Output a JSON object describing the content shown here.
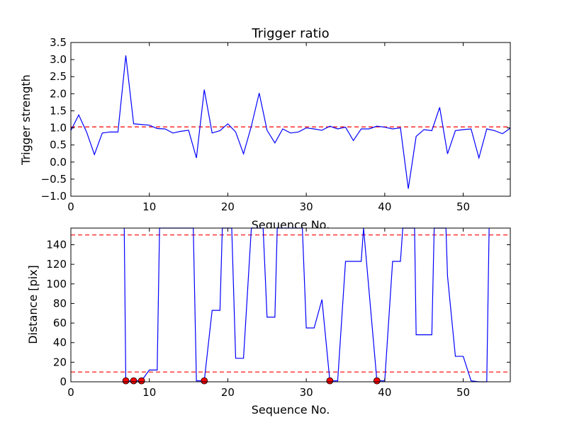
{
  "chart_data": [
    {
      "type": "line",
      "title": "Trigger ratio",
      "xlabel": "Sequence No.",
      "ylabel": "Trigger strength",
      "xlim": [
        0,
        56
      ],
      "ylim": [
        -1.0,
        3.5
      ],
      "xticks": [
        0,
        10,
        20,
        30,
        40,
        50
      ],
      "yticks": [
        -1.0,
        -0.5,
        0.0,
        0.5,
        1.0,
        1.5,
        2.0,
        2.5,
        3.0,
        3.5
      ],
      "xtick_labels": [
        "0",
        "10",
        "20",
        "30",
        "40",
        "50"
      ],
      "ytick_labels": [
        "−1.0",
        "−0.5",
        "0.0",
        "0.5",
        "1.0",
        "1.5",
        "2.0",
        "2.5",
        "3.0",
        "3.5"
      ],
      "grid": false,
      "series": [
        {
          "color": "#0000ff",
          "x": [
            0,
            1,
            2,
            3,
            4,
            5,
            6,
            7,
            8,
            9,
            10,
            11,
            12,
            13,
            14,
            15,
            16,
            17,
            18,
            19,
            20,
            21,
            22,
            23,
            24,
            25,
            26,
            27,
            28,
            29,
            30,
            31,
            32,
            33,
            34,
            35,
            36,
            37,
            38,
            39,
            40,
            41,
            42,
            43,
            44,
            45,
            46,
            47,
            48,
            49,
            50,
            51,
            52,
            53,
            54,
            55,
            56
          ],
          "y": [
            0.92,
            1.38,
            0.88,
            0.22,
            0.85,
            0.88,
            0.88,
            3.12,
            1.12,
            1.1,
            1.08,
            0.98,
            0.97,
            0.85,
            0.9,
            0.93,
            0.12,
            2.12,
            0.85,
            0.92,
            1.12,
            0.88,
            0.24,
            1.05,
            2.02,
            0.93,
            0.56,
            0.97,
            0.85,
            0.88,
            1.0,
            0.97,
            0.93,
            1.05,
            0.97,
            1.02,
            0.63,
            0.97,
            0.97,
            1.05,
            1.02,
            0.97,
            1.0,
            -0.78,
            0.75,
            0.95,
            0.92,
            1.6,
            0.24,
            0.92,
            0.95,
            0.97,
            0.12,
            0.97,
            0.92,
            0.83,
            0.99
          ]
        }
      ],
      "hlines": [
        {
          "y": 1.03,
          "color": "#ff0000",
          "style": "dashed"
        }
      ]
    },
    {
      "type": "line",
      "title": "",
      "xlabel": "Sequence No.",
      "ylabel": "Distance [pix]",
      "xlim": [
        0,
        56
      ],
      "ylim": [
        0,
        157
      ],
      "xticks": [
        0,
        10,
        20,
        30,
        40,
        50
      ],
      "yticks": [
        0,
        20,
        40,
        60,
        80,
        100,
        120,
        140
      ],
      "xtick_labels": [
        "0",
        "10",
        "20",
        "30",
        "40",
        "50"
      ],
      "ytick_labels": [
        "0",
        "20",
        "40",
        "60",
        "80",
        "100",
        "120",
        "140"
      ],
      "grid": false,
      "series": [
        {
          "color": "#0000ff",
          "x": [
            6.8,
            7,
            8,
            9,
            10,
            11,
            11.3,
            15.6,
            16,
            17,
            18,
            19,
            19.3,
            20.5,
            21,
            22,
            23,
            24.5,
            25,
            26,
            26.3,
            29.5,
            30,
            31,
            32,
            33,
            34,
            35,
            36,
            37,
            37.3,
            39,
            40,
            41,
            42,
            42.3,
            43.8,
            44,
            45,
            46,
            46.3,
            47.8,
            48,
            49,
            50,
            51,
            52,
            53,
            53.3
          ],
          "y": [
            157,
            1,
            1,
            1,
            12,
            12,
            157,
            157,
            1,
            1,
            73,
            73,
            157,
            157,
            24,
            24,
            157,
            157,
            66,
            66,
            157,
            157,
            55,
            55,
            84,
            1,
            1,
            123,
            123,
            123,
            157,
            1,
            1,
            123,
            123,
            157,
            157,
            48,
            48,
            48,
            157,
            157,
            108,
            26,
            26,
            1,
            0,
            0,
            157
          ]
        }
      ],
      "markers": {
        "color": "#ff0000",
        "x": [
          7,
          8,
          9,
          17,
          33,
          39
        ],
        "y": [
          1,
          1,
          1,
          1,
          1,
          1
        ]
      },
      "hlines": [
        {
          "y": 150,
          "color": "#ff0000",
          "style": "dashed"
        },
        {
          "y": 10,
          "color": "#ff0000",
          "style": "dashed"
        }
      ]
    }
  ]
}
